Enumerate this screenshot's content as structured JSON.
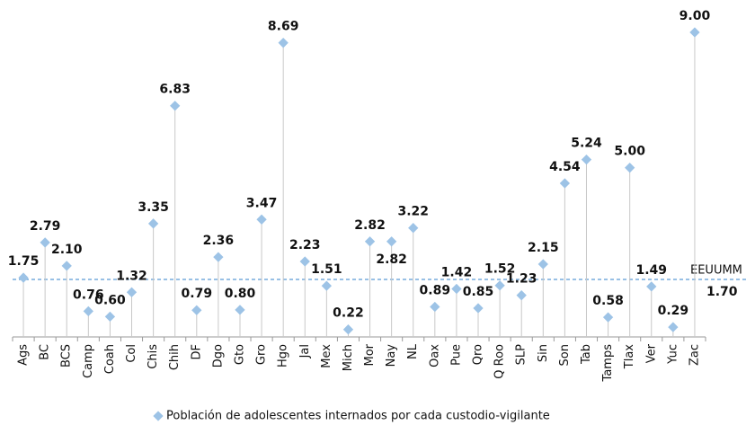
{
  "chart_data": {
    "type": "lollipop",
    "categories": [
      "Ags",
      "BC",
      "BCS",
      "Camp",
      "Coah",
      "Col",
      "Chis",
      "Chih",
      "DF",
      "Dgo",
      "Gto",
      "Gro",
      "Hgo",
      "Jal",
      "Mex",
      "Mich",
      "Mor",
      "Nay",
      "NL",
      "Oax",
      "Pue",
      "Qro",
      "Q Roo",
      "SLP",
      "Sin",
      "Son",
      "Tab",
      "Tamps",
      "Tlax",
      "Ver",
      "Yuc",
      "Zac"
    ],
    "series": [
      {
        "name": "Población de adolescentes internados por cada custodio-vigilante",
        "color": "#9dc3e6",
        "values": [
          1.75,
          2.79,
          2.1,
          0.76,
          0.6,
          1.32,
          3.35,
          6.83,
          0.79,
          2.36,
          0.8,
          3.47,
          8.69,
          2.23,
          1.51,
          0.22,
          2.82,
          2.82,
          3.22,
          0.89,
          1.42,
          0.85,
          1.52,
          1.23,
          2.15,
          4.54,
          5.24,
          0.58,
          5.0,
          1.49,
          0.29,
          9.0
        ],
        "value_labels": [
          "1.75",
          "2.79",
          "2.10",
          "0.76",
          "0.60",
          "1.32",
          "3.35",
          "6.83",
          "0.79",
          "2.36",
          "0.80",
          "3.47",
          "8.69",
          "2.23",
          "1.51",
          "0.22",
          "2.82",
          "2.82",
          "3.22",
          "0.89",
          "1.42",
          "0.85",
          "1.52",
          "1.23",
          "2.15",
          "4.54",
          "5.24",
          "0.58",
          "5.00",
          "1.49",
          "0.29",
          "9.00"
        ]
      }
    ],
    "reference": {
      "label": "EEUUMM",
      "value": 1.7,
      "value_label": "1.70",
      "color": "#5b9bd5"
    },
    "ylim": [
      0,
      9
    ],
    "legend": "bottom"
  }
}
